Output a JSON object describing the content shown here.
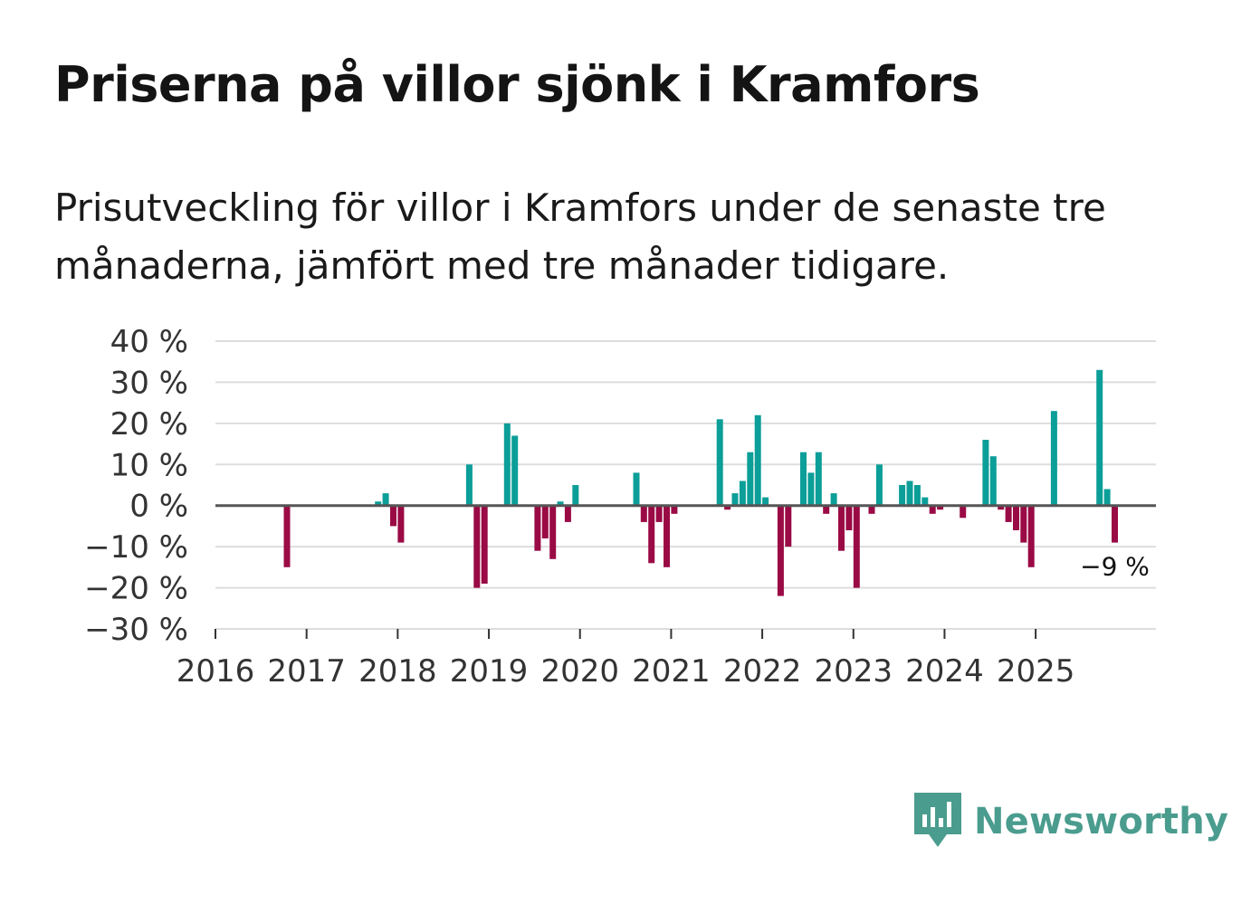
{
  "header": {
    "title": "Priserna på villor sjönk i Kramfors",
    "subtitle": "Prisutveckling för villor i Kramfors under de senaste tre månaderna, jämfört med tre månader tidigare."
  },
  "brand": {
    "name": "Newsworthy",
    "logo_icon": "bar-chart-speech-bubble-icon",
    "color": "#4a9c8e"
  },
  "colors": {
    "positive": "#0c9e98",
    "negative": "#9a0a45",
    "grid": "#dddddd",
    "zero_line": "#555555"
  },
  "chart_data": {
    "type": "bar",
    "title": "Priserna på villor sjönk i Kramfors",
    "subtitle": "Prisutveckling för villor i Kramfors under de senaste tre månaderna, jämfört med tre månader tidigare.",
    "xlabel": "",
    "ylabel": "",
    "x_unit": "month",
    "xlim": [
      "2016-01",
      "2026-04"
    ],
    "ylim": [
      -30,
      40
    ],
    "yticks": [
      40,
      30,
      20,
      10,
      0,
      -10,
      -20,
      -30
    ],
    "ytick_labels": [
      "40 %",
      "30 %",
      "20 %",
      "10 %",
      "0 %",
      "−10 %",
      "−20 %",
      "−30 %"
    ],
    "xticks": [
      "2016",
      "2017",
      "2018",
      "2019",
      "2020",
      "2021",
      "2022",
      "2023",
      "2024",
      "2025"
    ],
    "grid": true,
    "legend": "none",
    "end_label": "−9 %",
    "series": [
      {
        "name": "Prisutveckling (%)",
        "points": [
          {
            "month": "2016-10",
            "value": -15
          },
          {
            "month": "2017-10",
            "value": 1
          },
          {
            "month": "2017-11",
            "value": 3
          },
          {
            "month": "2017-12",
            "value": -5
          },
          {
            "month": "2018-01",
            "value": -9
          },
          {
            "month": "2018-10",
            "value": 10
          },
          {
            "month": "2018-11",
            "value": -20
          },
          {
            "month": "2018-12",
            "value": -19
          },
          {
            "month": "2019-03",
            "value": 20
          },
          {
            "month": "2019-04",
            "value": 17
          },
          {
            "month": "2019-07",
            "value": -11
          },
          {
            "month": "2019-08",
            "value": -8
          },
          {
            "month": "2019-09",
            "value": -13
          },
          {
            "month": "2019-10",
            "value": 1
          },
          {
            "month": "2019-11",
            "value": -4
          },
          {
            "month": "2019-12",
            "value": 5
          },
          {
            "month": "2020-08",
            "value": 8
          },
          {
            "month": "2020-09",
            "value": -4
          },
          {
            "month": "2020-10",
            "value": -14
          },
          {
            "month": "2020-11",
            "value": -4
          },
          {
            "month": "2020-12",
            "value": -15
          },
          {
            "month": "2021-01",
            "value": -2
          },
          {
            "month": "2021-07",
            "value": 21
          },
          {
            "month": "2021-08",
            "value": -1
          },
          {
            "month": "2021-09",
            "value": 3
          },
          {
            "month": "2021-10",
            "value": 6
          },
          {
            "month": "2021-11",
            "value": 13
          },
          {
            "month": "2021-12",
            "value": 22
          },
          {
            "month": "2022-01",
            "value": 2
          },
          {
            "month": "2022-03",
            "value": -22
          },
          {
            "month": "2022-04",
            "value": -10
          },
          {
            "month": "2022-06",
            "value": 13
          },
          {
            "month": "2022-07",
            "value": 8
          },
          {
            "month": "2022-08",
            "value": 13
          },
          {
            "month": "2022-09",
            "value": -2
          },
          {
            "month": "2022-10",
            "value": 3
          },
          {
            "month": "2022-11",
            "value": -11
          },
          {
            "month": "2022-12",
            "value": -6
          },
          {
            "month": "2023-01",
            "value": -20
          },
          {
            "month": "2023-03",
            "value": -2
          },
          {
            "month": "2023-04",
            "value": 10
          },
          {
            "month": "2023-07",
            "value": 5
          },
          {
            "month": "2023-08",
            "value": 6
          },
          {
            "month": "2023-09",
            "value": 5
          },
          {
            "month": "2023-10",
            "value": 2
          },
          {
            "month": "2023-11",
            "value": -2
          },
          {
            "month": "2023-12",
            "value": -1
          },
          {
            "month": "2024-03",
            "value": -3
          },
          {
            "month": "2024-06",
            "value": 16
          },
          {
            "month": "2024-07",
            "value": 12
          },
          {
            "month": "2024-08",
            "value": -1
          },
          {
            "month": "2024-09",
            "value": -4
          },
          {
            "month": "2024-10",
            "value": -6
          },
          {
            "month": "2024-11",
            "value": -9
          },
          {
            "month": "2024-12",
            "value": -15
          },
          {
            "month": "2025-03",
            "value": 23
          },
          {
            "month": "2025-09",
            "value": 33
          },
          {
            "month": "2025-10",
            "value": 4
          },
          {
            "month": "2025-11",
            "value": -9
          }
        ]
      }
    ]
  }
}
